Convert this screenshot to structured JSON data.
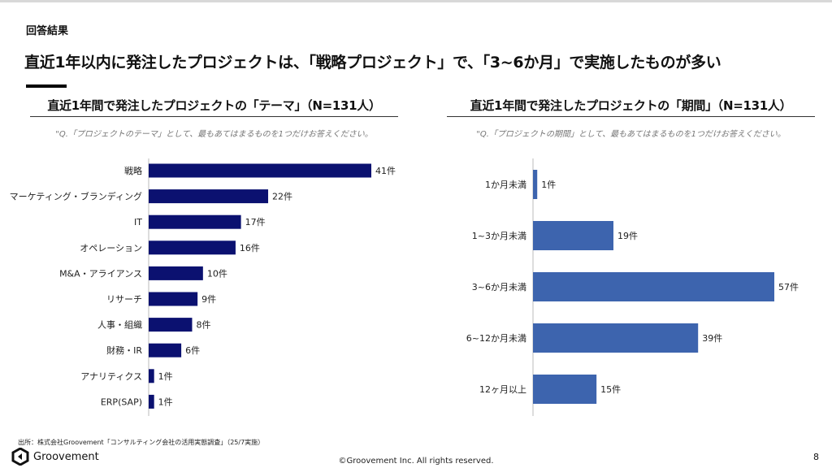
{
  "section_label": "回答結果",
  "headline": "直近1年以内に発注したプロジェクトは、「戦略プロジェクト」で、「3~6か月」で実施したものが多い",
  "chart_data": [
    {
      "type": "bar",
      "orientation": "horizontal",
      "title": "直近1年間で発注したプロジェクトの「テーマ」（N=131人）",
      "question": "\"Q.「プロジェクトのテーマ」として、最もあてはまるものを1つだけお答えください。",
      "categories": [
        "戦略",
        "マーケティング・ブランディング",
        "IT",
        "オペレーション",
        "M&A・アライアンス",
        "リサーチ",
        "人事・組織",
        "財務・IR",
        "アナリティクス",
        "ERP(SAP)"
      ],
      "values": [
        41,
        22,
        17,
        16,
        10,
        9,
        8,
        6,
        1,
        1
      ],
      "unit": "件",
      "color": "#0b1170"
    },
    {
      "type": "bar",
      "orientation": "horizontal",
      "title": "直近1年間で発注したプロジェクトの「期間」（N=131人）",
      "question": "\"Q.「プロジェクトの期間」として、最もあてはまるものを1つだけお答えください。",
      "categories": [
        "1か月未満",
        "1~3か月未満",
        "3~6か月未満",
        "6~12か月未満",
        "12ヶ月以上"
      ],
      "values": [
        1,
        19,
        57,
        39,
        15
      ],
      "unit": "件",
      "color": "#3d64ae"
    }
  ],
  "footer": {
    "source": "出所：株式会社Groovement「コンサルティング会社の活用実態調査」（25/7実施）",
    "logo": "Groovement",
    "copyright": "©Groovement Inc. All rights reserved.",
    "page": "8"
  }
}
